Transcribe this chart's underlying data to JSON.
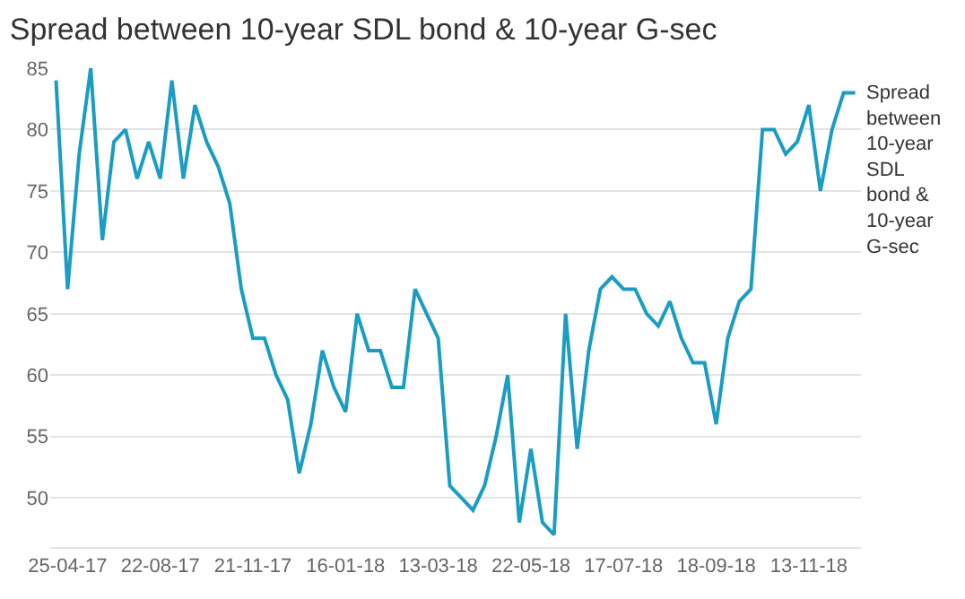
{
  "chart_data": {
    "type": "line",
    "title": "Spread between 10-year SDL bond & 10-year G-sec",
    "categories": [
      null,
      "25-04-17",
      null,
      null,
      null,
      null,
      null,
      null,
      null,
      "22-08-17",
      null,
      null,
      null,
      null,
      null,
      null,
      null,
      "21-11-17",
      null,
      null,
      null,
      null,
      null,
      null,
      null,
      "16-01-18",
      null,
      null,
      null,
      null,
      null,
      null,
      null,
      "13-03-18",
      null,
      null,
      null,
      null,
      null,
      null,
      null,
      "22-05-18",
      null,
      null,
      null,
      null,
      null,
      null,
      null,
      "17-07-18",
      null,
      null,
      null,
      null,
      null,
      null,
      null,
      "18-09-18",
      null,
      null,
      null,
      null,
      null,
      null,
      null,
      "13-11-18",
      null,
      null,
      null,
      null
    ],
    "series": [
      {
        "name": "Spread between 10-year SDL bond & 10-year G-sec",
        "color": "#1b9dc2",
        "values": [
          84,
          67,
          78,
          85,
          71,
          79,
          80,
          76,
          79,
          76,
          84,
          76,
          82,
          79,
          77,
          74,
          67,
          63,
          63,
          60,
          58,
          52,
          56,
          62,
          59,
          57,
          65,
          62,
          62,
          59,
          59,
          67,
          65,
          63,
          51,
          50,
          49,
          51,
          55,
          60,
          48,
          54,
          48,
          47,
          65,
          54,
          62,
          67,
          68,
          67,
          67,
          65,
          64,
          66,
          63,
          61,
          61,
          56,
          63,
          66,
          67,
          80,
          80,
          78,
          79,
          82,
          75,
          80,
          83,
          83
        ]
      }
    ],
    "ylim": [
      46,
      85
    ],
    "yticks": [
      50,
      55,
      60,
      65,
      70,
      75,
      80,
      85
    ],
    "grid": "y",
    "legend": false,
    "marker": "none",
    "line_style": "solid"
  }
}
